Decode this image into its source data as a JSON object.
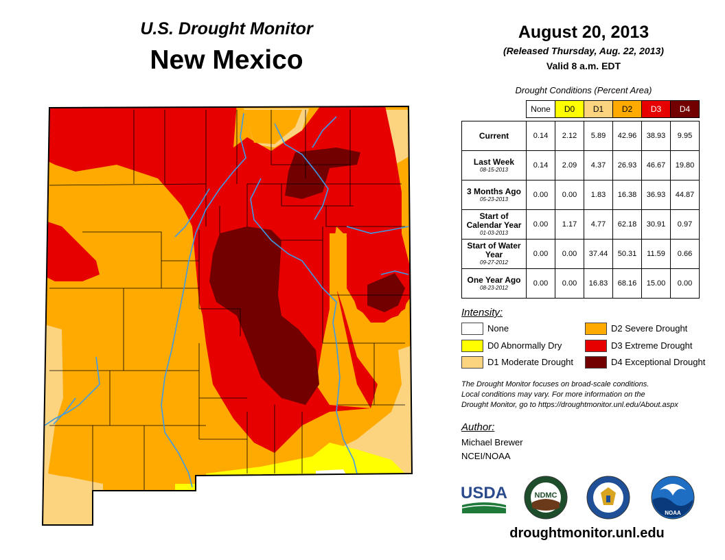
{
  "header": {
    "subtitle": "U.S. Drought Monitor",
    "state": "New Mexico",
    "date": "August 20, 2013",
    "released": "(Released Thursday, Aug. 22, 2013)",
    "valid": "Valid 8 a.m. EDT"
  },
  "conditions": {
    "title": "Drought Conditions (Percent Area)",
    "columns": [
      "None",
      "D0",
      "D1",
      "D2",
      "D3",
      "D4"
    ],
    "column_colors": [
      "#ffffff",
      "#ffff00",
      "#fcd37f",
      "#ffaa00",
      "#e60000",
      "#730000"
    ],
    "rows": [
      {
        "label": "Current",
        "date": "",
        "values": [
          "0.14",
          "2.12",
          "5.89",
          "42.96",
          "38.93",
          "9.95"
        ]
      },
      {
        "label": "Last Week",
        "date": "08-15-2013",
        "values": [
          "0.14",
          "2.09",
          "4.37",
          "26.93",
          "46.67",
          "19.80"
        ]
      },
      {
        "label": "3 Months Ago",
        "date": "05-23-2013",
        "values": [
          "0.00",
          "0.00",
          "1.83",
          "16.38",
          "36.93",
          "44.87"
        ]
      },
      {
        "label": "Start of Calendar Year",
        "date": "01-03-2013",
        "values": [
          "0.00",
          "1.17",
          "4.77",
          "62.18",
          "30.91",
          "0.97"
        ]
      },
      {
        "label": "Start of Water Year",
        "date": "09-27-2012",
        "values": [
          "0.00",
          "0.00",
          "37.44",
          "50.31",
          "11.59",
          "0.66"
        ]
      },
      {
        "label": "One Year Ago",
        "date": "08-23-2012",
        "values": [
          "0.00",
          "0.00",
          "16.83",
          "68.16",
          "15.00",
          "0.00"
        ]
      }
    ]
  },
  "legend": {
    "title": "Intensity:",
    "items": [
      {
        "label": "None",
        "color": "#ffffff"
      },
      {
        "label": "D0 Abnormally Dry",
        "color": "#ffff00"
      },
      {
        "label": "D1 Moderate Drought",
        "color": "#fcd37f"
      },
      {
        "label": "D2 Severe Drought",
        "color": "#ffaa00"
      },
      {
        "label": "D3 Extreme Drought",
        "color": "#e60000"
      },
      {
        "label": "D4 Exceptional Drought",
        "color": "#730000"
      }
    ]
  },
  "note": {
    "line1": "The Drought Monitor focuses on broad-scale conditions.",
    "line2": "Local conditions may vary. For more information on the",
    "line3": "Drought Monitor, go to https://droughtmonitor.unl.edu/About.aspx"
  },
  "author": {
    "title": "Author:",
    "name": "Michael Brewer",
    "org": "NCEI/NOAA"
  },
  "logos": {
    "usda": "USDA",
    "ndmc": "NDMC",
    "noaa": "NOAA"
  },
  "footer_url": "droughtmonitor.unl.edu"
}
